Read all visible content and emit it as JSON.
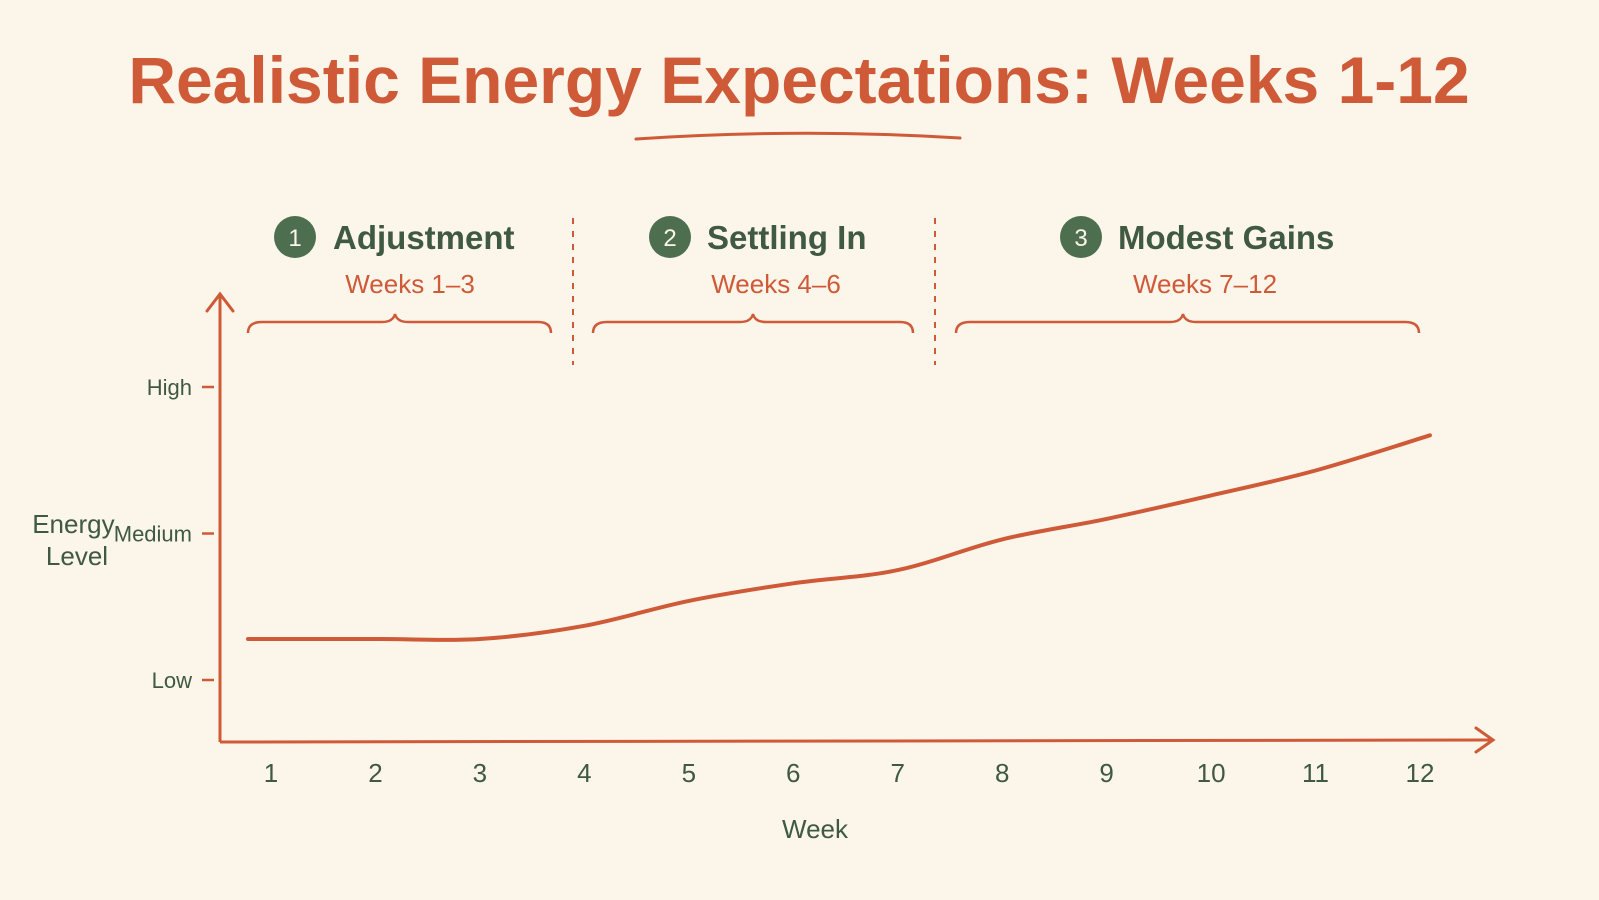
{
  "title": "Realistic Energy Expectations: Weeks 1-12",
  "colors": {
    "background": "#fcf5ea",
    "accent": "#cf5a38",
    "green": "#4e6f4f",
    "text_green": "#3f5a40"
  },
  "phases": [
    {
      "number": "1",
      "name": "Adjustment",
      "weeks": "Weeks 1–3"
    },
    {
      "number": "2",
      "name": "Settling In",
      "weeks": "Weeks 4–6"
    },
    {
      "number": "3",
      "name": "Modest Gains",
      "weeks": "Weeks 7–12"
    }
  ],
  "chart_data": {
    "type": "line",
    "title": "Realistic Energy Expectations: Weeks 1-12",
    "xlabel": "Week",
    "ylabel": "Energy Level",
    "x": [
      1,
      2,
      3,
      4,
      5,
      6,
      7,
      8,
      9,
      10,
      11,
      12
    ],
    "categories": [
      "1",
      "2",
      "3",
      "4",
      "5",
      "6",
      "7",
      "8",
      "9",
      "10",
      "11",
      "12"
    ],
    "y_tick_labels": [
      "Low",
      "Medium",
      "High"
    ],
    "y_tick_values": [
      1,
      2,
      3
    ],
    "ylim": [
      0.6,
      3.6
    ],
    "series": [
      {
        "values": [
          1.28,
          1.28,
          1.28,
          1.37,
          1.54,
          1.66,
          1.75,
          1.96,
          2.1,
          2.26,
          2.43,
          2.67
        ]
      }
    ],
    "grid": false,
    "legend": "none"
  }
}
